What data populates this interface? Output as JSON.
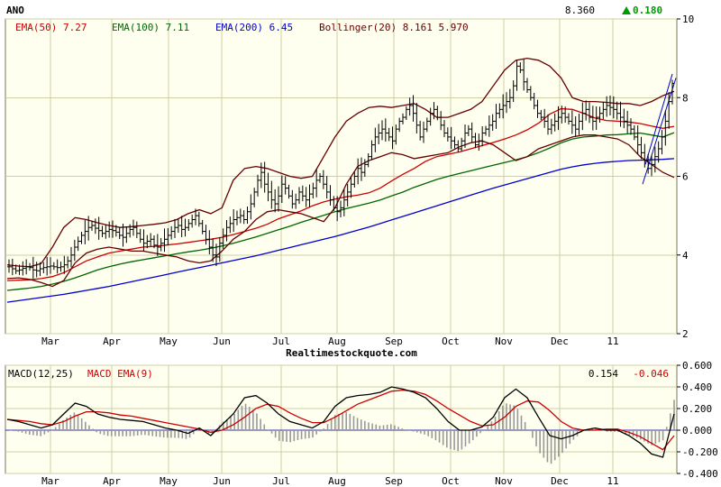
{
  "chart_data": [
    {
      "type": "ohlc",
      "symbol": "ANO",
      "last_price": "8.360",
      "change": "0.180",
      "change_direction": "up",
      "ylim": [
        2,
        10
      ],
      "yticks": [
        "2",
        "4",
        "6",
        "8",
        "10"
      ],
      "months": [
        "Mar",
        "Apr",
        "May",
        "Jun",
        "Jul",
        "Aug",
        "Sep",
        "Oct",
        "Nov",
        "Dec",
        "11"
      ],
      "watermark": "Realtimestockquote.com",
      "grid": true,
      "legend": [
        {
          "label": "EMA(50)",
          "value": "7.27",
          "color": "#cc0000"
        },
        {
          "label": "EMA(100)",
          "value": "7.11",
          "color": "#006600"
        },
        {
          "label": "EMA(200)",
          "value": "6.45",
          "color": "#0000cc"
        },
        {
          "label": "Bollinger(20)",
          "value": "8.161 5.970",
          "color": "#660000"
        }
      ],
      "series": [
        {
          "name": "Price",
          "color": "#000000",
          "values": [
            3.7,
            3.65,
            3.6,
            3.62,
            3.66,
            3.7,
            3.68,
            3.62,
            3.6,
            3.65,
            3.68,
            3.7,
            3.72,
            3.7,
            3.68,
            3.7,
            3.75,
            3.85,
            4.0,
            4.2,
            4.35,
            4.5,
            4.6,
            4.7,
            4.75,
            4.68,
            4.62,
            4.55,
            4.6,
            4.65,
            4.62,
            4.58,
            4.5,
            4.45,
            4.55,
            4.65,
            4.7,
            4.55,
            4.4,
            4.3,
            4.35,
            4.4,
            4.25,
            4.2,
            4.3,
            4.4,
            4.5,
            4.6,
            4.7,
            4.75,
            4.65,
            4.7,
            4.8,
            4.9,
            5.0,
            4.8,
            4.6,
            4.4,
            4.2,
            4.0,
            3.95,
            4.3,
            4.5,
            4.7,
            4.8,
            4.9,
            4.95,
            5.0,
            4.9,
            5.1,
            5.3,
            5.6,
            5.9,
            6.1,
            5.8,
            5.6,
            5.4,
            5.3,
            5.5,
            5.8,
            5.7,
            5.5,
            5.3,
            5.4,
            5.6,
            5.5,
            5.4,
            5.55,
            5.7,
            5.9,
            6.0,
            5.8,
            5.6,
            5.4,
            5.2,
            5.1,
            5.2,
            5.4,
            5.6,
            5.8,
            6.0,
            6.2,
            6.1,
            6.3,
            6.5,
            6.8,
            7.0,
            7.1,
            7.2,
            7.1,
            7.0,
            6.9,
            7.2,
            7.4,
            7.5,
            7.7,
            7.8,
            7.6,
            7.3,
            7.0,
            7.2,
            7.4,
            7.6,
            7.7,
            7.5,
            7.3,
            7.1,
            7.0,
            6.9,
            6.8,
            6.7,
            6.9,
            7.1,
            7.2,
            7.0,
            6.8,
            6.9,
            7.1,
            7.2,
            7.3,
            7.4,
            7.6,
            7.7,
            7.8,
            7.9,
            8.0,
            8.3,
            8.8,
            8.7,
            8.4,
            8.2,
            8.0,
            7.8,
            7.6,
            7.5,
            7.4,
            7.2,
            7.3,
            7.4,
            7.5,
            7.6,
            7.5,
            7.4,
            7.3,
            7.2,
            7.4,
            7.6,
            7.7,
            7.5,
            7.4,
            7.5,
            7.6,
            7.7,
            7.8,
            7.75,
            7.7,
            7.6,
            7.5,
            7.4,
            7.3,
            7.2,
            7.0,
            6.8,
            6.6,
            6.4,
            6.2,
            6.3,
            6.5,
            6.7,
            7.0,
            7.4,
            7.9,
            8.36
          ]
        }
      ],
      "overlays": [
        {
          "name": "EMA(50)",
          "color": "#cc0000",
          "values": [
            3.35,
            3.36,
            3.37,
            3.4,
            3.45,
            3.55,
            3.7,
            3.85,
            3.95,
            4.05,
            4.1,
            4.15,
            4.2,
            4.22,
            4.25,
            4.28,
            4.32,
            4.36,
            4.4,
            4.45,
            4.52,
            4.6,
            4.68,
            4.78,
            4.92,
            5.02,
            5.12,
            5.25,
            5.35,
            5.42,
            5.48,
            5.52,
            5.58,
            5.7,
            5.88,
            6.05,
            6.2,
            6.38,
            6.5,
            6.56,
            6.62,
            6.7,
            6.78,
            6.86,
            6.95,
            7.05,
            7.18,
            7.35,
            7.58,
            7.72,
            7.7,
            7.6,
            7.48,
            7.42,
            7.4,
            7.38,
            7.34,
            7.28,
            7.22,
            7.27
          ]
        },
        {
          "name": "EMA(100)",
          "color": "#006600",
          "values": [
            3.1,
            3.13,
            3.16,
            3.2,
            3.26,
            3.33,
            3.42,
            3.52,
            3.62,
            3.7,
            3.77,
            3.83,
            3.88,
            3.93,
            3.98,
            4.03,
            4.08,
            4.12,
            4.17,
            4.23,
            4.3,
            4.38,
            4.46,
            4.55,
            4.64,
            4.73,
            4.83,
            4.92,
            5.01,
            5.1,
            5.18,
            5.25,
            5.32,
            5.4,
            5.5,
            5.6,
            5.72,
            5.82,
            5.92,
            6.0,
            6.07,
            6.14,
            6.21,
            6.28,
            6.35,
            6.42,
            6.5,
            6.6,
            6.72,
            6.85,
            6.95,
            7.0,
            7.02,
            7.05,
            7.06,
            7.08,
            7.1,
            7.05,
            7.0,
            7.11
          ]
        },
        {
          "name": "EMA(200)",
          "color": "#0000cc",
          "values": [
            2.8,
            2.84,
            2.88,
            2.92,
            2.96,
            3.0,
            3.05,
            3.1,
            3.15,
            3.2,
            3.26,
            3.32,
            3.38,
            3.44,
            3.5,
            3.56,
            3.62,
            3.68,
            3.74,
            3.8,
            3.86,
            3.92,
            3.98,
            4.05,
            4.12,
            4.19,
            4.26,
            4.33,
            4.4,
            4.47,
            4.55,
            4.63,
            4.71,
            4.8,
            4.89,
            4.98,
            5.07,
            5.16,
            5.25,
            5.34,
            5.43,
            5.52,
            5.61,
            5.7,
            5.78,
            5.86,
            5.94,
            6.02,
            6.1,
            6.18,
            6.24,
            6.29,
            6.33,
            6.36,
            6.38,
            6.4,
            6.41,
            6.42,
            6.43,
            6.45
          ]
        },
        {
          "name": "Bollinger upper",
          "color": "#660000",
          "values": [
            3.75,
            3.72,
            3.7,
            3.78,
            4.2,
            4.7,
            4.95,
            4.9,
            4.82,
            4.75,
            4.7,
            4.72,
            4.75,
            4.78,
            4.82,
            4.9,
            5.05,
            5.15,
            5.05,
            5.2,
            5.9,
            6.2,
            6.25,
            6.2,
            6.1,
            6.0,
            5.95,
            6.0,
            6.5,
            7.0,
            7.4,
            7.6,
            7.75,
            7.78,
            7.75,
            7.8,
            7.85,
            7.7,
            7.5,
            7.5,
            7.6,
            7.7,
            7.9,
            8.3,
            8.7,
            8.95,
            9.0,
            8.95,
            8.8,
            8.5,
            8.0,
            7.9,
            7.9,
            7.88,
            7.85,
            7.85,
            7.8,
            7.9,
            8.05,
            8.16
          ]
        },
        {
          "name": "Bollinger lower",
          "color": "#660000",
          "values": [
            3.4,
            3.42,
            3.38,
            3.3,
            3.2,
            3.35,
            3.8,
            4.05,
            4.15,
            4.2,
            4.15,
            4.1,
            4.1,
            4.05,
            4.0,
            3.95,
            3.85,
            3.8,
            3.85,
            4.1,
            4.4,
            4.6,
            4.9,
            5.1,
            5.15,
            5.1,
            5.05,
            4.95,
            4.85,
            5.2,
            5.8,
            6.25,
            6.4,
            6.5,
            6.6,
            6.55,
            6.45,
            6.5,
            6.55,
            6.6,
            6.75,
            6.85,
            6.9,
            6.8,
            6.6,
            6.4,
            6.5,
            6.7,
            6.8,
            6.9,
            7.0,
            7.05,
            7.05,
            7.0,
            6.95,
            6.8,
            6.5,
            6.3,
            6.1,
            5.97
          ]
        }
      ]
    },
    {
      "type": "macd",
      "title": "MACD(12,25)",
      "signal_label": "MACD EMA(9)",
      "macd_value": "0.154",
      "signal_value": "-0.046",
      "ylim": [
        -0.4,
        0.6
      ],
      "yticks": [
        "-0.400",
        "-0.200",
        "0.000",
        "0.200",
        "0.400",
        "0.600"
      ],
      "months": [
        "Mar",
        "Apr",
        "May",
        "Jun",
        "Jul",
        "Aug",
        "Sep",
        "Oct",
        "Nov",
        "Dec",
        "11"
      ],
      "series": [
        {
          "name": "MACD(12,25)",
          "color": "#000000",
          "values": [
            0.1,
            0.08,
            0.05,
            0.02,
            0.05,
            0.15,
            0.25,
            0.22,
            0.15,
            0.12,
            0.1,
            0.09,
            0.08,
            0.05,
            0.02,
            0.0,
            -0.03,
            0.02,
            -0.05,
            0.05,
            0.15,
            0.3,
            0.32,
            0.25,
            0.15,
            0.08,
            0.05,
            0.02,
            0.08,
            0.22,
            0.3,
            0.32,
            0.33,
            0.35,
            0.4,
            0.38,
            0.35,
            0.3,
            0.2,
            0.08,
            0.0,
            0.0,
            0.03,
            0.12,
            0.3,
            0.38,
            0.3,
            0.12,
            -0.05,
            -0.08,
            -0.05,
            0.0,
            0.02,
            0.0,
            0.0,
            -0.05,
            -0.12,
            -0.22,
            -0.25,
            0.15
          ]
        },
        {
          "name": "MACD EMA(9)",
          "color": "#cc0000",
          "values": [
            0.1,
            0.09,
            0.08,
            0.06,
            0.05,
            0.08,
            0.13,
            0.17,
            0.17,
            0.16,
            0.14,
            0.13,
            0.11,
            0.09,
            0.07,
            0.05,
            0.03,
            0.01,
            -0.02,
            0.0,
            0.05,
            0.12,
            0.2,
            0.24,
            0.22,
            0.16,
            0.11,
            0.07,
            0.07,
            0.12,
            0.18,
            0.24,
            0.28,
            0.32,
            0.36,
            0.37,
            0.36,
            0.33,
            0.27,
            0.2,
            0.14,
            0.08,
            0.04,
            0.05,
            0.12,
            0.22,
            0.27,
            0.26,
            0.18,
            0.08,
            0.02,
            0.0,
            0.0,
            0.01,
            0.01,
            -0.02,
            -0.06,
            -0.12,
            -0.18,
            -0.05
          ]
        }
      ]
    }
  ]
}
